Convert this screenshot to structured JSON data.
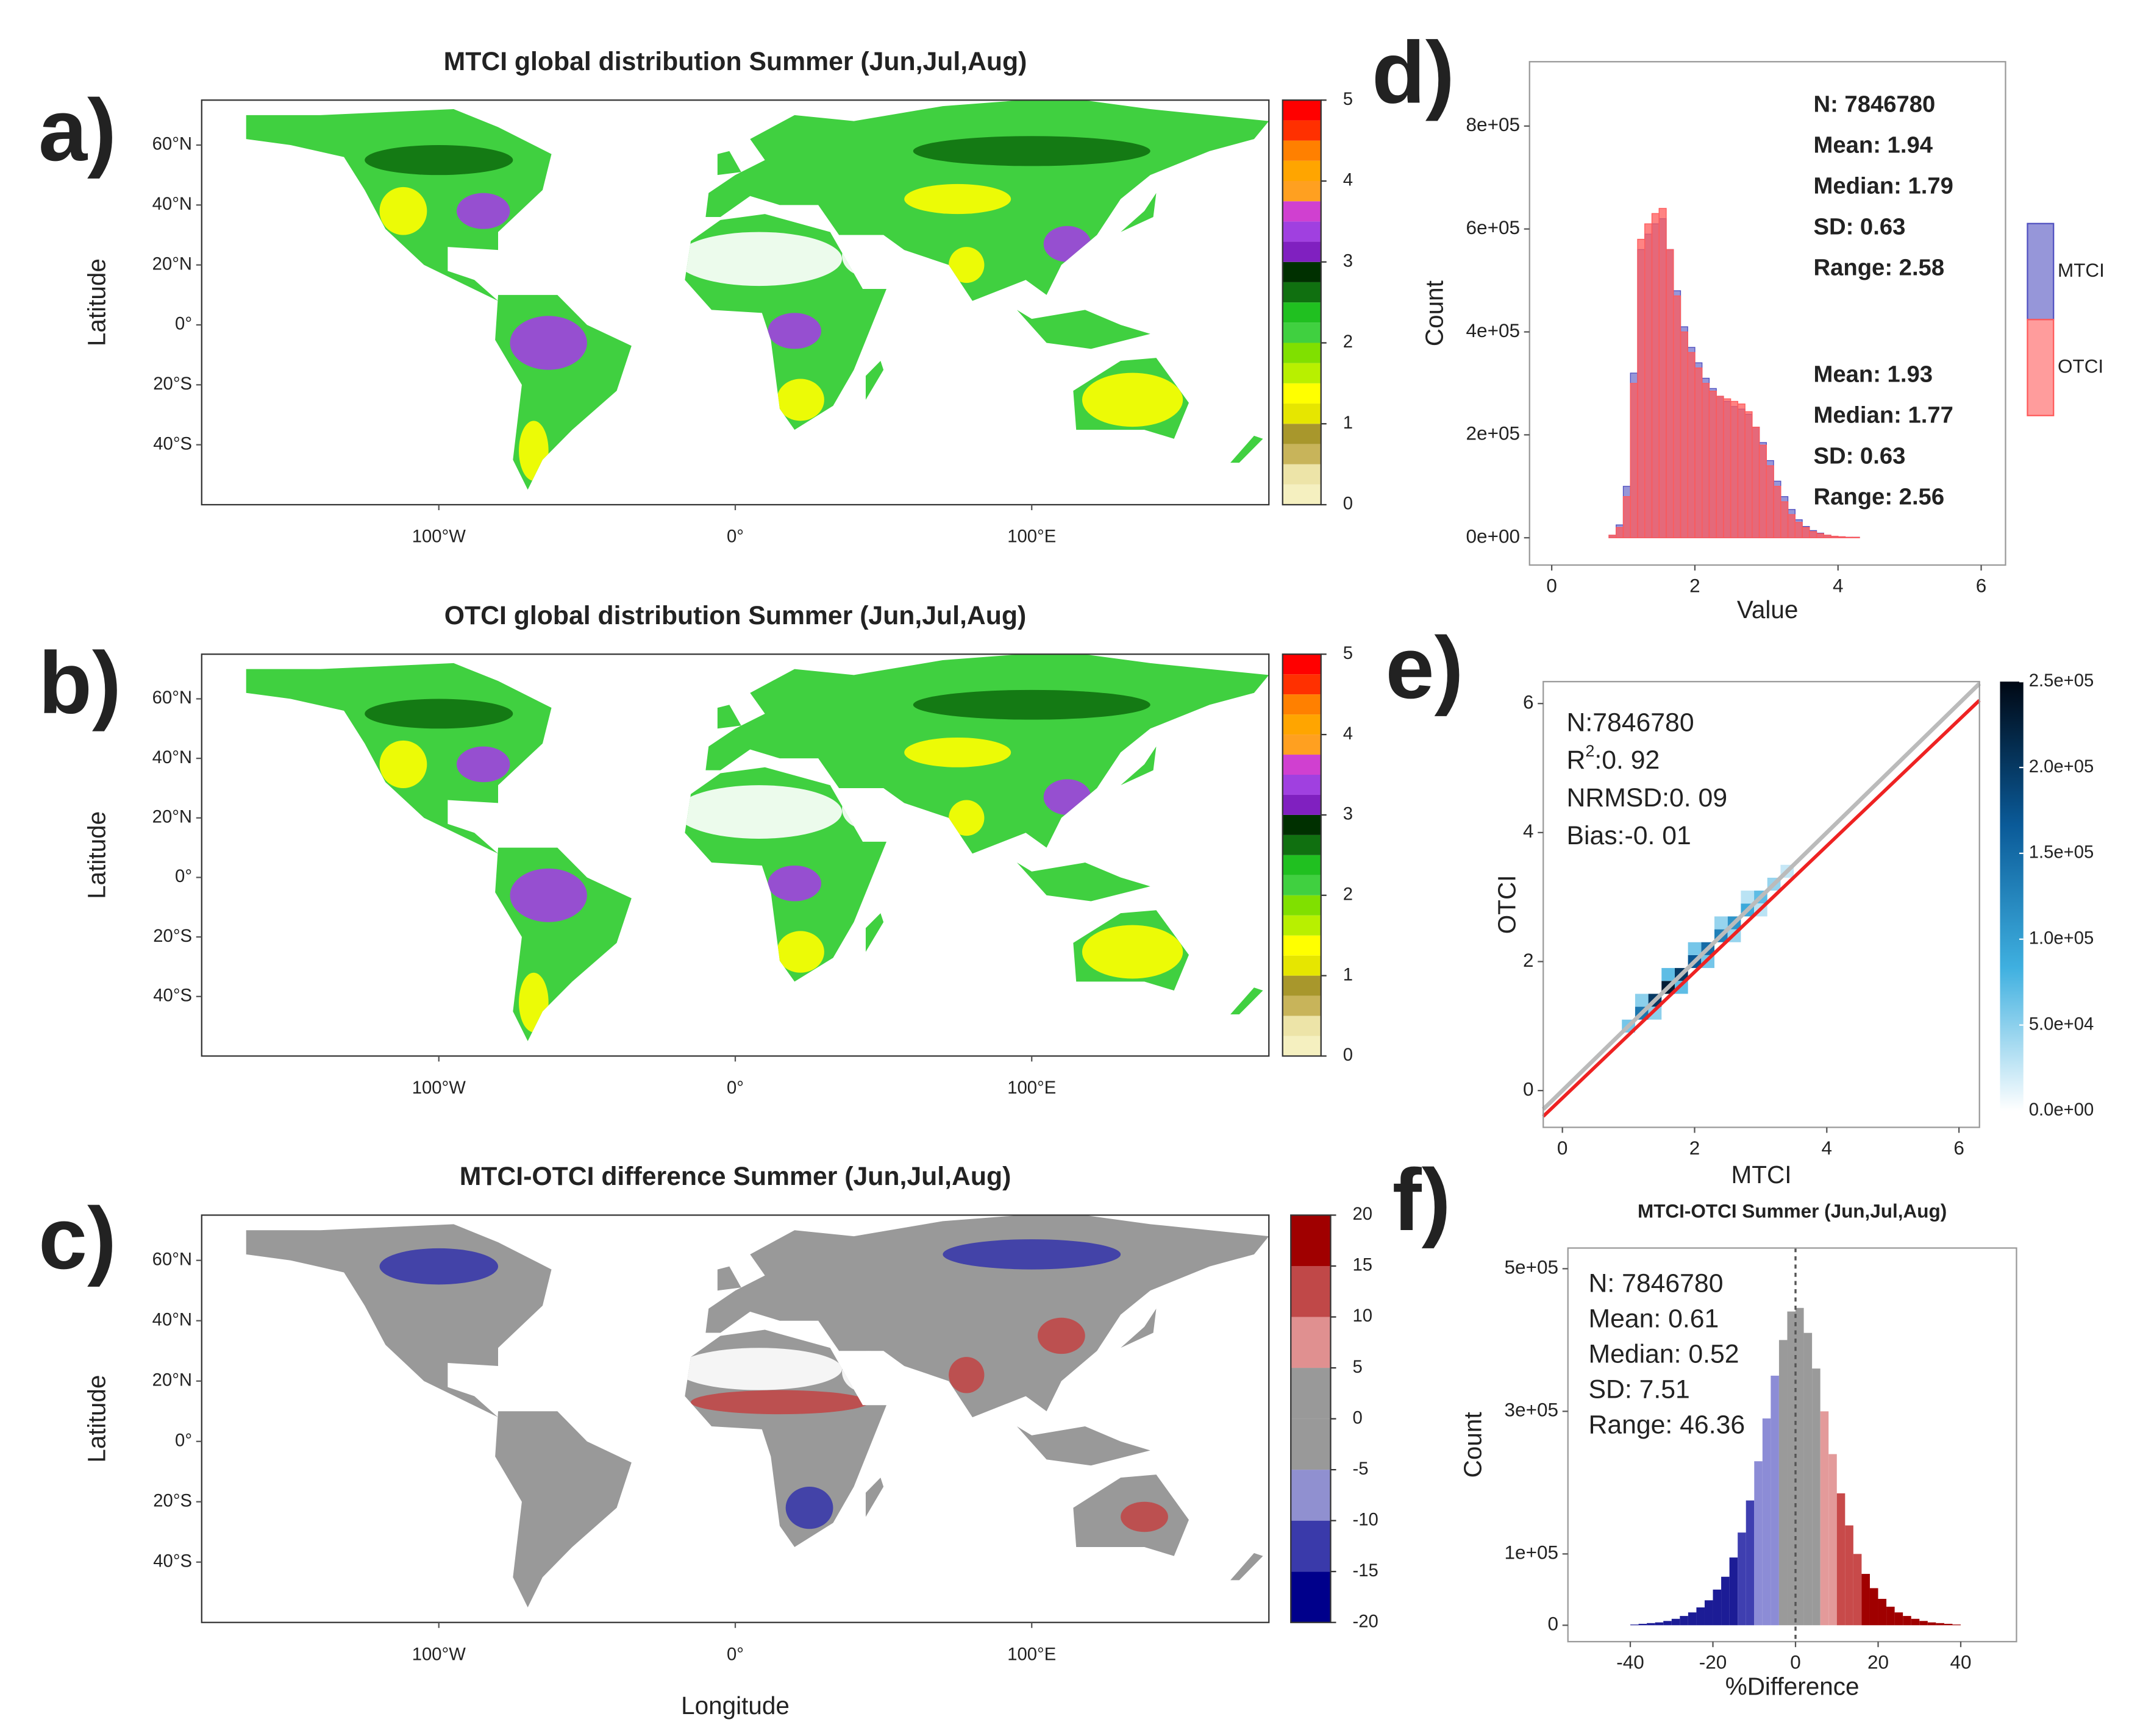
{
  "chart_data": [
    {
      "type": "map",
      "panel": "a)",
      "title": "MTCI global distribution Summer (Jun,Jul,Aug)",
      "ylabel": "Latitude",
      "xlim": [
        -180,
        180
      ],
      "ylim": [
        -60,
        75
      ],
      "xticks": [
        {
          "value": -100,
          "label": "100°W"
        },
        {
          "value": 0,
          "label": "0°"
        },
        {
          "value": 100,
          "label": "100°E"
        }
      ],
      "yticks": [
        {
          "value": -40,
          "label": "40°S"
        },
        {
          "value": -20,
          "label": "20°S"
        },
        {
          "value": 0,
          "label": "0°"
        },
        {
          "value": 20,
          "label": "20°N"
        },
        {
          "value": 40,
          "label": "40°N"
        },
        {
          "value": 60,
          "label": "60°N"
        }
      ],
      "colorbar": {
        "lim": [
          0,
          5
        ],
        "ticks": [
          0,
          1,
          2,
          3,
          4,
          5
        ],
        "colors": [
          "#f5f0c0",
          "#ede4a8",
          "#c8b45a",
          "#a8972c",
          "#e6e600",
          "#ffff00",
          "#b8f000",
          "#80e000",
          "#40d040",
          "#20c020",
          "#107010",
          "#003000",
          "#8020c0",
          "#a040e0",
          "#d040d0",
          "#ffa020",
          "#ffa500",
          "#ff8000",
          "#ff3000",
          "#ff0000"
        ]
      }
    },
    {
      "type": "map",
      "panel": "b)",
      "title": "OTCI global distribution Summer (Jun,Jul,Aug)",
      "ylabel": "Latitude",
      "xlim": [
        -180,
        180
      ],
      "ylim": [
        -60,
        75
      ],
      "xticks": [
        {
          "value": -100,
          "label": "100°W"
        },
        {
          "value": 0,
          "label": "0°"
        },
        {
          "value": 100,
          "label": "100°E"
        }
      ],
      "yticks": [
        {
          "value": -40,
          "label": "40°S"
        },
        {
          "value": -20,
          "label": "20°S"
        },
        {
          "value": 0,
          "label": "0°"
        },
        {
          "value": 20,
          "label": "20°N"
        },
        {
          "value": 40,
          "label": "40°N"
        },
        {
          "value": 60,
          "label": "60°N"
        }
      ],
      "colorbar": {
        "lim": [
          0,
          5
        ],
        "ticks": [
          0,
          1,
          2,
          3,
          4,
          5
        ],
        "colors": [
          "#f5f0c0",
          "#ede4a8",
          "#c8b45a",
          "#a8972c",
          "#e6e600",
          "#ffff00",
          "#b8f000",
          "#80e000",
          "#40d040",
          "#20c020",
          "#107010",
          "#003000",
          "#8020c0",
          "#a040e0",
          "#d040d0",
          "#ffa020",
          "#ffa500",
          "#ff8000",
          "#ff3000",
          "#ff0000"
        ]
      }
    },
    {
      "type": "map",
      "panel": "c)",
      "title": "MTCI-OTCI difference Summer (Jun,Jul,Aug)",
      "ylabel": "Latitude",
      "xlabel": "Longitude",
      "xlim": [
        -180,
        180
      ],
      "ylim": [
        -60,
        75
      ],
      "xticks": [
        {
          "value": -100,
          "label": "100°W"
        },
        {
          "value": 0,
          "label": "0°"
        },
        {
          "value": 100,
          "label": "100°E"
        }
      ],
      "yticks": [
        {
          "value": -40,
          "label": "40°S"
        },
        {
          "value": -20,
          "label": "20°S"
        },
        {
          "value": 0,
          "label": "0°"
        },
        {
          "value": 20,
          "label": "20°N"
        },
        {
          "value": 40,
          "label": "40°N"
        },
        {
          "value": 60,
          "label": "60°N"
        }
      ],
      "colorbar": {
        "lim": [
          -20,
          20
        ],
        "ticks": [
          -20,
          -15,
          -10,
          -5,
          0,
          5,
          10,
          15,
          20
        ],
        "colors": [
          "#00008b",
          "#3a3aaa",
          "#9090d0",
          "#999999",
          "#999999",
          "#e09090",
          "#c04848",
          "#a00000"
        ]
      }
    },
    {
      "type": "histogram",
      "panel": "d)",
      "xlabel": "Value",
      "ylabel": "Count",
      "xlim": [
        -0.31,
        6.34
      ],
      "ylim": [
        -53000,
        925000
      ],
      "xticks": [
        0,
        2,
        4,
        6
      ],
      "yticks": [
        {
          "value": 0,
          "label": "0e+00"
        },
        {
          "value": 200000,
          "label": "2e+05"
        },
        {
          "value": 400000,
          "label": "4e+05"
        },
        {
          "value": 600000,
          "label": "6e+05"
        },
        {
          "value": 800000,
          "label": "8e+05"
        }
      ],
      "bins": [
        0.8,
        0.9,
        1.0,
        1.1,
        1.2,
        1.3,
        1.4,
        1.5,
        1.6,
        1.7,
        1.8,
        1.9,
        2.0,
        2.1,
        2.2,
        2.3,
        2.4,
        2.5,
        2.6,
        2.7,
        2.8,
        2.9,
        3.0,
        3.1,
        3.2,
        3.3,
        3.4,
        3.5,
        3.6,
        3.7,
        3.8,
        3.9,
        4.0,
        4.1,
        4.2,
        4.3
      ],
      "series": [
        {
          "name": "MTCI",
          "color": "#5050c0",
          "values": [
            5000,
            25000,
            100000,
            320000,
            560000,
            590000,
            610000,
            620000,
            560000,
            480000,
            410000,
            370000,
            340000,
            310000,
            290000,
            275000,
            265000,
            255000,
            250000,
            240000,
            215000,
            185000,
            150000,
            110000,
            80000,
            55000,
            35000,
            22000,
            14000,
            9000,
            5000,
            3000,
            2000,
            1000,
            1000
          ]
        },
        {
          "name": "OTCI",
          "color": "#ff5a5a",
          "values": [
            5000,
            20000,
            80000,
            300000,
            580000,
            610000,
            630000,
            640000,
            560000,
            470000,
            400000,
            360000,
            330000,
            300000,
            285000,
            275000,
            270000,
            265000,
            260000,
            245000,
            215000,
            180000,
            140000,
            100000,
            70000,
            45000,
            30000,
            20000,
            12000,
            8000,
            5000,
            3000,
            2000,
            1000,
            1000
          ]
        }
      ],
      "legend": "outside-right",
      "annotations": [
        {
          "color": "#1a1a9c",
          "lines": [
            "N: 7846780",
            "Mean: 1.94",
            "Median: 1.79",
            "SD: 0.63",
            "Range: 2.58"
          ]
        },
        {
          "color": "#b00000",
          "lines": [
            "Mean: 1.93",
            "Median: 1.77",
            "SD: 0.63",
            "Range: 2.56"
          ]
        }
      ]
    },
    {
      "type": "heatmap",
      "panel": "e)",
      "xlabel": "MTCI",
      "ylabel": "OTCI",
      "xlim": [
        -0.29,
        6.31
      ],
      "ylim": [
        -0.57,
        6.34
      ],
      "xticks": [
        0,
        2,
        4,
        6
      ],
      "yticks": [
        0,
        2,
        4,
        6
      ],
      "cells": {
        "x": [
          1.0,
          1.2,
          1.4,
          1.6,
          1.8,
          2.0,
          2.2,
          2.4,
          2.6,
          2.8,
          3.0,
          3.2,
          3.4,
          1.2,
          1.6,
          2.0,
          2.4,
          2.8,
          1.4,
          1.8,
          2.2,
          2.6,
          3.0
        ],
        "y": [
          1.0,
          1.2,
          1.4,
          1.6,
          1.8,
          2.0,
          2.2,
          2.4,
          2.6,
          2.8,
          3.0,
          3.2,
          3.4,
          1.4,
          1.8,
          2.2,
          2.6,
          3.0,
          1.2,
          1.6,
          2.0,
          2.4,
          2.8
        ],
        "values": [
          60000,
          140000,
          200000,
          230000,
          200000,
          170000,
          150000,
          130000,
          110000,
          90000,
          70000,
          45000,
          25000,
          50000,
          70000,
          60000,
          45000,
          30000,
          50000,
          70000,
          60000,
          45000,
          30000
        ],
        "binwidth": 0.2
      },
      "fit_line": {
        "x": [
          -0.29,
          6.31
        ],
        "y": [
          -0.4,
          6.05
        ]
      },
      "colorbar": {
        "lim": [
          0,
          250000
        ],
        "ticks": [
          {
            "value": 0,
            "label": "0.0e+00"
          },
          {
            "value": 50000,
            "label": "5.0e+04"
          },
          {
            "value": 100000,
            "label": "1.0e+05"
          },
          {
            "value": 150000,
            "label": "1.5e+05"
          },
          {
            "value": 200000,
            "label": "2.0e+05"
          },
          {
            "value": 250000,
            "label": "2.5e+05"
          }
        ],
        "colors": [
          "#ffffff",
          "#3fb0e0",
          "#0a5a98",
          "#000814"
        ]
      },
      "annotations": [
        "N:7846780",
        {
          "base": "R",
          "sup": "2",
          "text": ":0. 92"
        },
        "NRMSD:0. 09",
        "Bias:-0. 01"
      ]
    },
    {
      "type": "histogram",
      "panel": "f)",
      "title": "MTCI-OTCI Summer (Jun,Jul,Aug)",
      "xlabel": "%Difference",
      "ylabel": "Count",
      "xlim": [
        -55.1,
        53.5
      ],
      "ylim": [
        -23000,
        529000
      ],
      "xticks": [
        -40,
        -20,
        0,
        20,
        40
      ],
      "yticks": [
        0,
        {
          "value": 100000,
          "label": "1e+05"
        },
        {
          "value": 300000,
          "label": "3e+05"
        },
        {
          "value": 500000,
          "label": "5e+05"
        }
      ],
      "bins": [
        -40,
        -38,
        -36,
        -34,
        -32,
        -30,
        -28,
        -26,
        -24,
        -22,
        -20,
        -18,
        -16,
        -14,
        -12,
        -10,
        -8,
        -6,
        -4,
        -2,
        0,
        2,
        4,
        6,
        8,
        10,
        12,
        14,
        16,
        18,
        20,
        22,
        24,
        26,
        28,
        30,
        32,
        34,
        36,
        38,
        40
      ],
      "values": [
        1000,
        2000,
        3000,
        4000,
        6000,
        9000,
        13000,
        18000,
        25000,
        35000,
        50000,
        68000,
        95000,
        130000,
        175000,
        230000,
        290000,
        350000,
        400000,
        440000,
        445000,
        410000,
        360000,
        300000,
        240000,
        185000,
        140000,
        100000,
        72000,
        52000,
        37000,
        26000,
        18000,
        13000,
        9000,
        6000,
        4000,
        3000,
        2000,
        1000
      ],
      "class_edges": [
        -15,
        -10,
        -5,
        5,
        10,
        15
      ],
      "class_colors": [
        "#1c1c96",
        "#3f3fb0",
        "#8c8cd6",
        "#9a9a9a",
        "#e39a9a",
        "#c84a4a",
        "#a00000"
      ],
      "vline": 0,
      "annotations": [
        "N: 7846780",
        "Mean: 0.61",
        "Median: 0.52",
        "SD: 7.51",
        "Range: 46.36"
      ]
    }
  ]
}
